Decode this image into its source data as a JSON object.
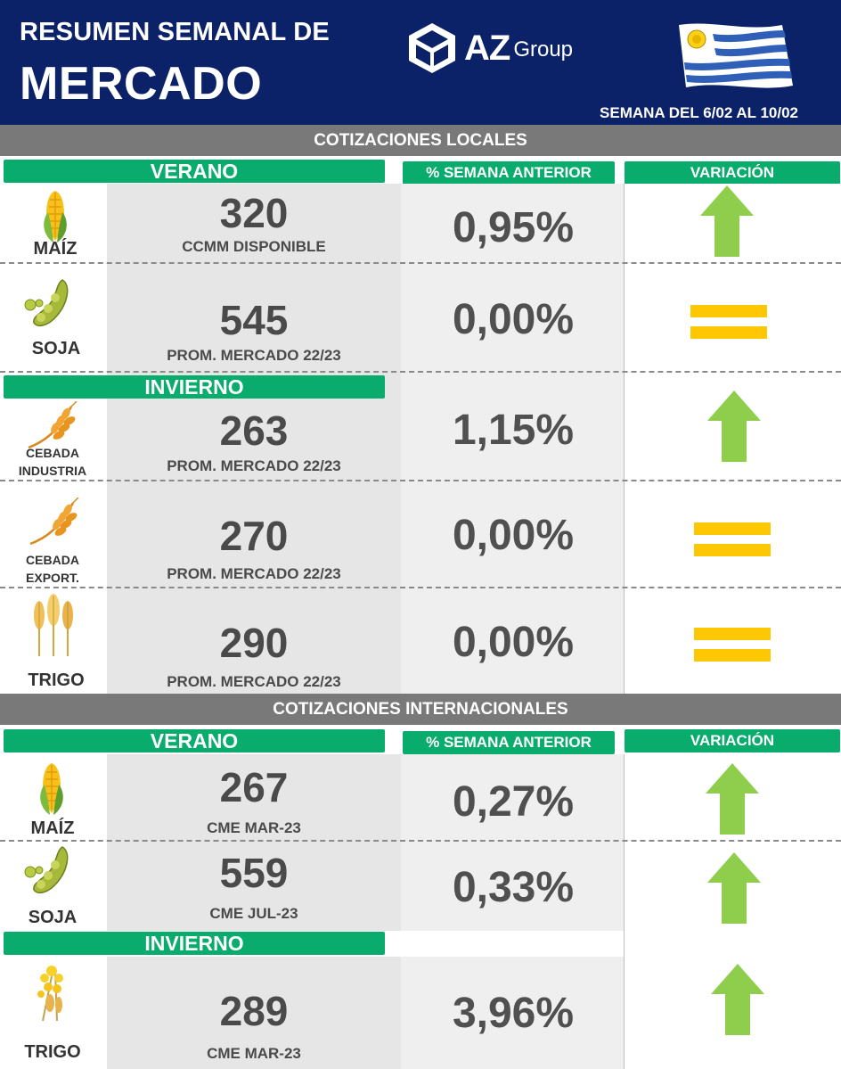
{
  "header": {
    "title_line1": "RESUMEN SEMANAL DE",
    "title_line2": "MERCADO",
    "logo_az": "AZ",
    "logo_group": "Group",
    "week_label": "SEMANA DEL  6/02 AL 10/02"
  },
  "colors": {
    "navy": "#0c2268",
    "green": "#0aac6e",
    "arrow_green": "#8fce4c",
    "equal_yellow": "#fdc704",
    "band_gray": "#797979"
  },
  "local": {
    "section_title": "COTIZACIONES LOCALES",
    "season_summer": "VERANO",
    "col_pct": "% SEMANA ANTERIOR",
    "col_variation": "VARIACIÓN",
    "season_winter": "INVIERNO",
    "rows": [
      {
        "crop": "MAÍZ",
        "icon": "corn-icon",
        "price": "320",
        "reference": "CCMM DISPONIBLE",
        "pct": "0,95%",
        "variation": "up"
      },
      {
        "crop": "SOJA",
        "icon": "soybean-icon",
        "price": "545",
        "reference": "PROM. MERCADO 22/23",
        "pct": "0,00%",
        "variation": "equal"
      },
      {
        "crop_line1": "CEBADA",
        "crop_line2": "INDUSTRIA",
        "icon": "barley-icon",
        "price": "263",
        "reference": "PROM. MERCADO 22/23",
        "pct": "1,15%",
        "variation": "up"
      },
      {
        "crop_line1": "CEBADA",
        "crop_line2": "EXPORT.",
        "icon": "barley-icon",
        "price": "270",
        "reference": "PROM. MERCADO 22/23",
        "pct": "0,00%",
        "variation": "equal"
      },
      {
        "crop": "TRIGO",
        "icon": "wheat-icon",
        "price": "290",
        "reference": "PROM. MERCADO 22/23",
        "pct": "0,00%",
        "variation": "equal"
      }
    ]
  },
  "international": {
    "section_title": "COTIZACIONES INTERNACIONALES",
    "season_summer": "VERANO",
    "col_pct": "% SEMANA ANTERIOR",
    "col_variation": "VARIACIÓN",
    "season_winter": "INVIERNO",
    "rows": [
      {
        "crop": "MAÍZ",
        "icon": "corn-icon",
        "price": "267",
        "reference": "CME MAR-23",
        "pct": "0,27%",
        "variation": "up"
      },
      {
        "crop": "SOJA",
        "icon": "soybean-icon",
        "price": "559",
        "reference": "CME JUL-23",
        "pct": "0,33%",
        "variation": "up"
      },
      {
        "crop": "TRIGO",
        "icon": "wheat-flower-icon",
        "price": "289",
        "reference": "CME MAR-23",
        "pct": "3,96%",
        "variation": "up"
      }
    ]
  }
}
